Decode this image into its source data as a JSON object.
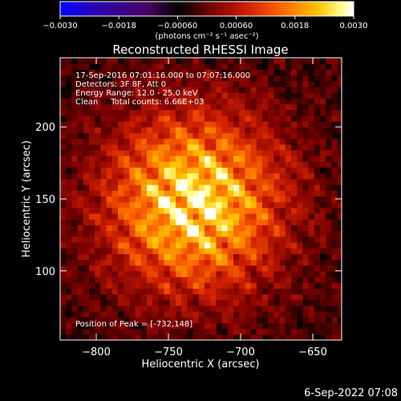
{
  "chart_data": {
    "type": "heatmap",
    "title": "Reconstructed RHESSI Image",
    "xlabel": "Heliocentric X (arcsec)",
    "ylabel": "Heliocentric Y (arcsec)",
    "xlim": [
      -825,
      -630
    ],
    "ylim": [
      52,
      248
    ],
    "xticks": [
      -800,
      -750,
      -700,
      -650
    ],
    "yticks": [
      100,
      150,
      200
    ],
    "xtick_labels": [
      "−800",
      "−750",
      "−700",
      "−650"
    ],
    "ytick_labels": [
      "100",
      "150",
      "200"
    ],
    "colorbar": {
      "min": -0.003,
      "max": 0.003,
      "ticks": [
        -0.003,
        -0.0018,
        -0.0006,
        0.0006,
        0.0018,
        0.003
      ],
      "tick_labels": [
        "−0.0030",
        "−0.0018",
        "−0.00060",
        "0.00060",
        "0.0018",
        "0.0030"
      ],
      "unit_label": "(photons cm⁻² s⁻¹ asec⁻²)",
      "colors": [
        "#0000ff",
        "#2a00b0",
        "#4a0060",
        "#000000",
        "#7a0000",
        "#d02000",
        "#ff6a00",
        "#ffc400",
        "#ffff90",
        "#ffffff"
      ]
    },
    "annotations": [
      "17-Sep-2016 07:01:16.000 to 07:07:16.000",
      "Detectors: 3F 8F, Att 0",
      "Energy Range: 12.0 - 25.0 keV",
      "Clean     Total counts: 6.66E+03"
    ],
    "peak_label": "Position of Peak = [-732,148]",
    "peak": {
      "x": -732,
      "y": 148
    },
    "grid": false,
    "image": {
      "center": [
        -732,
        148
      ],
      "pixel_size_arcsec": 4,
      "peak_value": 0.003
    }
  },
  "timestamp": "6-Sep-2022 07:08"
}
